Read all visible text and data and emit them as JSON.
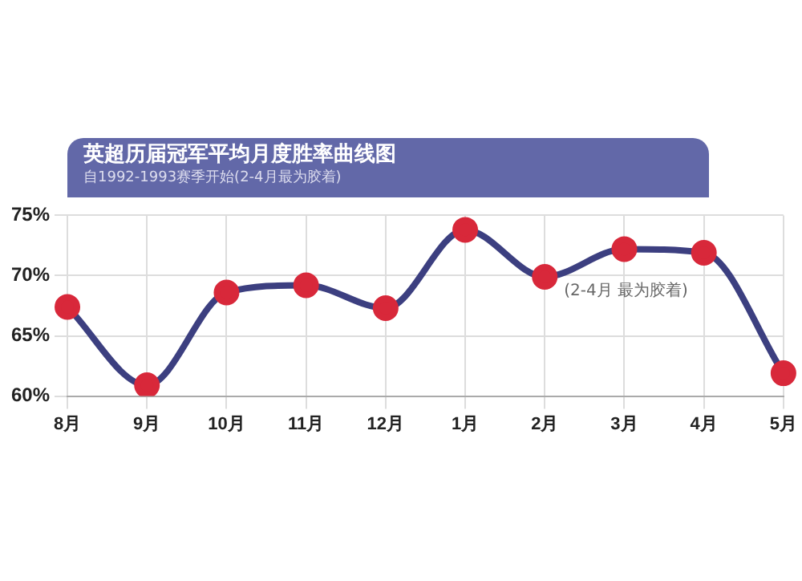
{
  "chart_data": {
    "type": "line",
    "title": "英超历届冠军平均月度胜率曲线图",
    "subtitle": "自1992-1993赛季开始(2-4月最为胶着)",
    "categories": [
      "8月",
      "9月",
      "10月",
      "11月",
      "12月",
      "1月",
      "2月",
      "3月",
      "4月",
      "5月"
    ],
    "series": [
      {
        "color": "#3c3f80",
        "values": [
          67.4,
          60.9,
          68.6,
          69.2,
          67.3,
          73.8,
          69.9,
          72.2,
          71.9,
          61.9
        ]
      }
    ],
    "marker": "circle",
    "ylim": [
      60,
      75
    ],
    "yticks": [
      {
        "value": 60,
        "label": "60%"
      },
      {
        "value": 65,
        "label": "65%"
      },
      {
        "value": 70,
        "label": "70%"
      },
      {
        "value": 75,
        "label": "75%"
      }
    ],
    "grid": true,
    "legend": false,
    "annotations": [
      "(2-4月 最为胶着)"
    ]
  }
}
